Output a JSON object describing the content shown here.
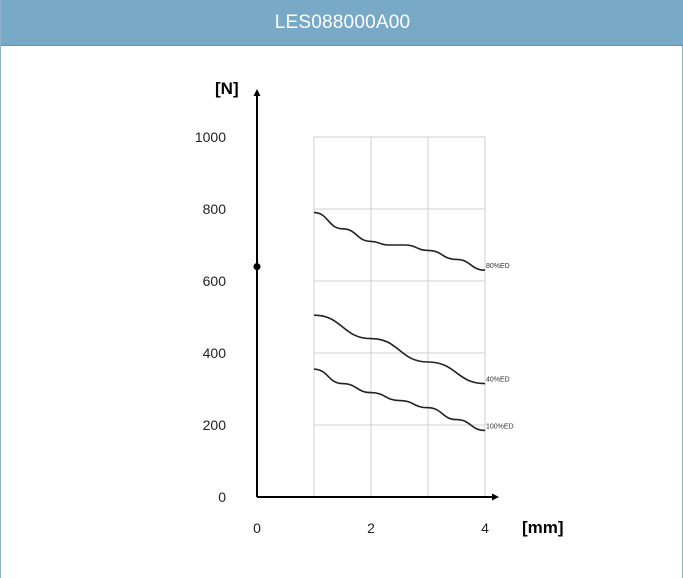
{
  "header": {
    "title": "LES088000A00"
  },
  "colors": {
    "header_bg": "#78a9c6",
    "header_text": "#ffffff",
    "grid": "#cfcfcf",
    "line": "#222222"
  },
  "chart_data": {
    "type": "line",
    "title": "",
    "xlabel": "[mm]",
    "ylabel": "[N]",
    "xlim": [
      0,
      4
    ],
    "ylim": [
      0,
      1000
    ],
    "xticks": [
      0,
      2,
      4
    ],
    "yticks": [
      0,
      200,
      400,
      600,
      800,
      1000
    ],
    "grid": true,
    "series": [
      {
        "name": "80%ED",
        "x": [
          1,
          1.5,
          2,
          2.3,
          2.6,
          3,
          3.5,
          4
        ],
        "y": [
          790,
          745,
          710,
          700,
          700,
          685,
          660,
          630
        ]
      },
      {
        "name": "40%ED",
        "x": [
          1,
          2,
          3,
          4
        ],
        "y": [
          505,
          440,
          375,
          315
        ]
      },
      {
        "name": "100%ED",
        "x": [
          1,
          1.5,
          2,
          2.5,
          3,
          3.5,
          4
        ],
        "y": [
          355,
          315,
          290,
          268,
          248,
          215,
          185
        ]
      }
    ],
    "marker_point": {
      "x": 0,
      "y": 640
    }
  }
}
